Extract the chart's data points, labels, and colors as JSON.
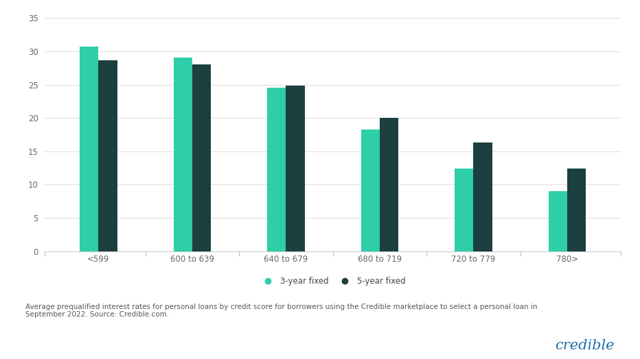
{
  "categories": [
    "<599",
    "600 to 639",
    "640 to 679",
    "680 to 719",
    "720 to 779",
    "780>"
  ],
  "three_year": [
    30.7,
    29.1,
    24.5,
    18.3,
    12.4,
    9.0
  ],
  "five_year": [
    28.6,
    28.0,
    24.8,
    20.0,
    16.3,
    12.4
  ],
  "color_3year": "#2dcea8",
  "color_5year": "#1c3f3f",
  "ylim": [
    0,
    35
  ],
  "yticks": [
    0,
    5,
    10,
    15,
    20,
    25,
    30,
    35
  ],
  "background_color": "#ffffff",
  "legend_3year": "3-year fixed",
  "legend_5year": "5-year fixed",
  "footnote": "Average prequalified interest rates for personal loans by credit score for borrowers using the Credible marketplace to select a personal loan in\nSeptember 2022. Source: Credible.com.",
  "credible_text": "credible",
  "credible_color": "#1a6fa8",
  "bar_width": 0.28,
  "grid_color": "#e0e0e0"
}
